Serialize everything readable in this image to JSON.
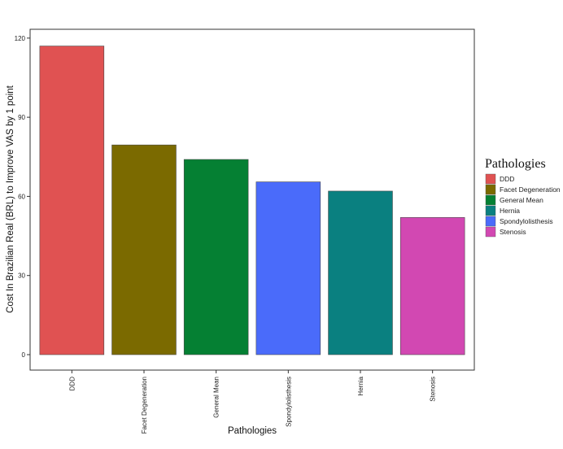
{
  "chart_data": {
    "type": "bar",
    "xlabel": "Pathologies",
    "ylabel": "Cost In Brazilian Real (BRL) to Improve VAS by 1 point",
    "ylim": [
      0,
      125
    ],
    "yticks": [
      0,
      30,
      60,
      90,
      120
    ],
    "ytick_labels": [
      "0",
      "30",
      "60",
      "90",
      "120"
    ],
    "categories": [
      "DDD",
      "Facet Degeneration",
      "General Mean",
      "Spondylolisthesis",
      "Hernia",
      "Stenosis"
    ],
    "values": [
      117,
      79.5,
      74,
      65.5,
      62,
      52
    ],
    "series_categories": [
      "DDD",
      "Facet Degeneration",
      "General Mean",
      "Spondylolisthesis",
      "Hernia",
      "Stenosis"
    ],
    "bar_colors": [
      "#E05252",
      "#7B6A00",
      "#058033",
      "#4A6BFA",
      "#0A8080",
      "#D248B2"
    ],
    "grid": false,
    "legend": {
      "title": "Pathologies",
      "placement": "right",
      "items": [
        {
          "label": "DDD",
          "color": "#E05252"
        },
        {
          "label": "Facet Degeneration",
          "color": "#7B6A00"
        },
        {
          "label": "General Mean",
          "color": "#058033"
        },
        {
          "label": "Hernia",
          "color": "#0A8080"
        },
        {
          "label": "Spondylolisthesis",
          "color": "#4A6BFA"
        },
        {
          "label": "Stenosis",
          "color": "#D248B2"
        }
      ]
    }
  }
}
